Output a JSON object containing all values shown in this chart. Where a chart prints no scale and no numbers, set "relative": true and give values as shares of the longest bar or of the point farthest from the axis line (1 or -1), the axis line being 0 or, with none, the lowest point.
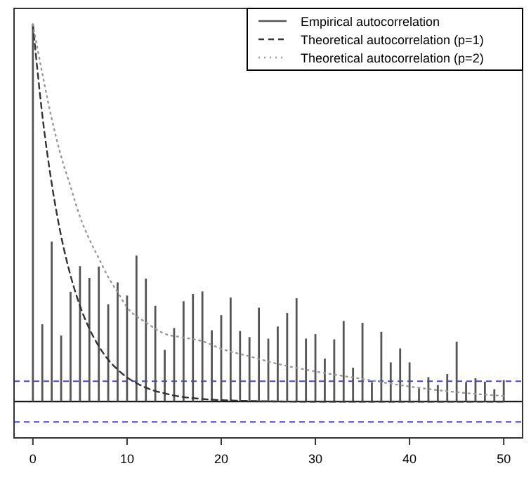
{
  "chart_data": {
    "type": "bar",
    "relative": true,
    "x": [
      0,
      1,
      2,
      3,
      4,
      5,
      6,
      7,
      8,
      9,
      10,
      11,
      12,
      13,
      14,
      15,
      16,
      17,
      18,
      19,
      20,
      21,
      22,
      23,
      24,
      25,
      26,
      27,
      28,
      29,
      30,
      31,
      32,
      33,
      34,
      35,
      36,
      37,
      38,
      39,
      40,
      41,
      42,
      43,
      44,
      45,
      46,
      47,
      48,
      49,
      50
    ],
    "xlim": [
      -2,
      52
    ],
    "xticks": [
      0,
      10,
      20,
      30,
      40,
      50
    ],
    "legend": "top right",
    "series": [
      {
        "name": "Empirical autocorrelation",
        "color": "#555555",
        "line_style": "solid",
        "values": [
          1,
          0.205,
          0.424,
          0.175,
          0.291,
          0.359,
          0.328,
          0.358,
          0.258,
          0.316,
          0.281,
          0.387,
          0.326,
          0.254,
          0.137,
          0.195,
          0.266,
          0.285,
          0.292,
          0.189,
          0.229,
          0.276,
          0.187,
          0.171,
          0.249,
          0.167,
          0.199,
          0.235,
          0.274,
          0.167,
          0.179,
          0.114,
          0.165,
          0.214,
          0.09,
          0.209,
          0.051,
          0.185,
          0.104,
          0.141,
          0.104,
          0.037,
          0.065,
          0.044,
          0.073,
          0.159,
          0.052,
          0.062,
          0.053,
          0.033,
          0.057
        ]
      },
      {
        "name": "Theoretical autocorrelation (p=1)",
        "type": "line",
        "color": "#333333",
        "line_style": "dashed",
        "x": [
          0,
          1,
          2,
          3,
          4,
          5,
          6,
          7,
          8,
          9,
          10,
          11,
          12,
          13,
          14,
          15,
          16,
          18,
          20,
          25,
          30,
          40,
          50
        ],
        "values": [
          1,
          0.76,
          0.578,
          0.439,
          0.334,
          0.254,
          0.193,
          0.147,
          0.111,
          0.085,
          0.064,
          0.049,
          0.037,
          0.028,
          0.022,
          0.016,
          0.012,
          0.007,
          0.004,
          0.001,
          0,
          0,
          0
        ]
      },
      {
        "name": "Theoretical autocorrelation (p=2)",
        "type": "line",
        "color": "#999999",
        "line_style": "dotted",
        "x": [
          0,
          1,
          2,
          3,
          4,
          5,
          6,
          7,
          8,
          9,
          10,
          12,
          14,
          16,
          18,
          20,
          23,
          26,
          30,
          35,
          40,
          45,
          50
        ],
        "values": [
          1,
          0.87,
          0.75,
          0.65,
          0.57,
          0.49,
          0.43,
          0.38,
          0.33,
          0.29,
          0.25,
          0.21,
          0.18,
          0.17,
          0.16,
          0.14,
          0.12,
          0.1,
          0.08,
          0.06,
          0.04,
          0.025,
          0.015
        ]
      }
    ],
    "ref_lines": [
      {
        "axis": "y",
        "value": 0.054,
        "color": "#4444dd",
        "line_style": "dashed"
      },
      {
        "axis": "y",
        "value": -0.054,
        "color": "#4444dd",
        "line_style": "dashed"
      }
    ]
  }
}
